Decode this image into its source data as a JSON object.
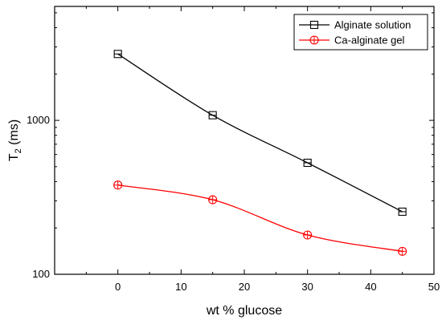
{
  "chart_data": {
    "type": "line",
    "xlabel": "wt % glucose",
    "ylabel_main": "T",
    "ylabel_sub": "2",
    "ylabel_rest": " (ms)",
    "xlim": [
      -10,
      50
    ],
    "ylim": [
      100,
      5500
    ],
    "yscale": "log",
    "x_ticks": [
      0,
      10,
      20,
      30,
      40,
      50
    ],
    "x_tick_labels": [
      "0",
      "10",
      "20",
      "30",
      "40",
      "50"
    ],
    "y_ticks": [
      100,
      1000
    ],
    "y_tick_labels": [
      "100",
      "1000"
    ],
    "legend_position": "top-right",
    "series": [
      {
        "name": "Alginate solution",
        "color": "#000000",
        "marker": "square",
        "x": [
          0,
          15,
          30,
          45
        ],
        "values": [
          2700,
          1080,
          530,
          255
        ]
      },
      {
        "name": "Ca-alginate gel",
        "color": "#ff0000",
        "marker": "circle-plus",
        "x": [
          0,
          15,
          30,
          45
        ],
        "values": [
          380,
          305,
          180,
          141
        ]
      }
    ]
  }
}
